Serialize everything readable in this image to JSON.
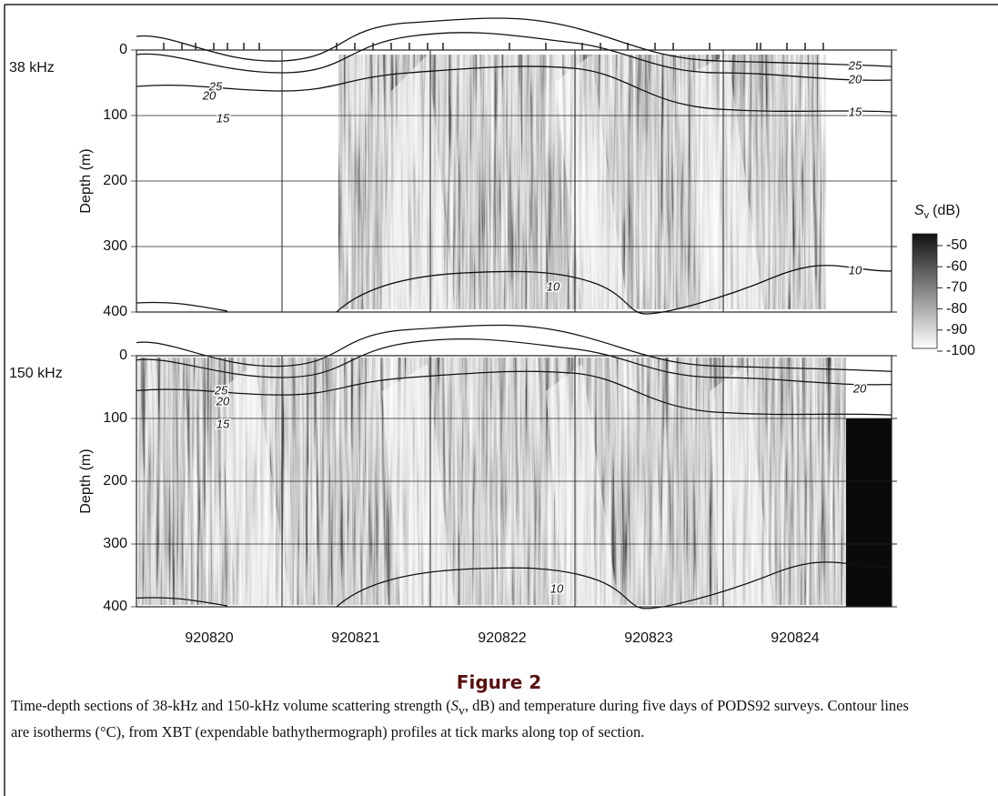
{
  "figure": {
    "panels": [
      {
        "label": "38 kHz",
        "y_axis_label": "Depth (m)",
        "yticks": [
          "0",
          "100",
          "200",
          "300",
          "400"
        ],
        "contour_labels": [
          "25",
          "20",
          "15",
          "25",
          "20",
          "15",
          "10",
          "10"
        ]
      },
      {
        "label": "150 kHz",
        "y_axis_label": "Depth (m)",
        "yticks": [
          "0",
          "100",
          "200",
          "300",
          "400"
        ],
        "contour_labels": [
          "25",
          "20",
          "15",
          "20",
          "10"
        ]
      }
    ],
    "x_labels": [
      "920820",
      "920821",
      "920822",
      "920823",
      "920824"
    ],
    "colorbar": {
      "symbol": "S",
      "subscript": "v",
      "unit": "(dB)",
      "ticks": [
        "-50",
        "-60",
        "-70",
        "-80",
        "-90",
        "-100"
      ]
    }
  },
  "caption": {
    "title": "Figure 2",
    "text_before": "Time-depth sections of 38-kHz and 150-kHz volume scattering strength (",
    "symbol": "S",
    "subscript": "v",
    "text_after": ", dB) and temperature during five days of PODS92 surveys. Contour lines are isotherms (°C), from XBT (expendable bathythermograph) profiles at tick marks along top of section."
  }
}
